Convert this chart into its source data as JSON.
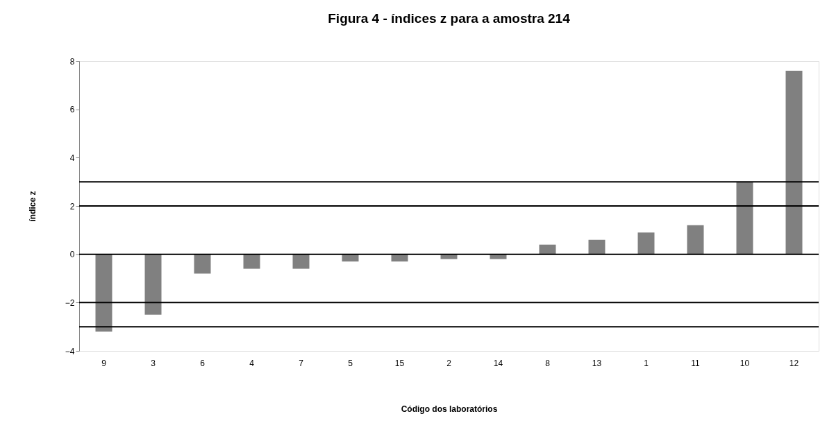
{
  "chart_data": {
    "type": "bar",
    "title": "Figura 4 - índices z para a amostra 214",
    "xlabel": "Código dos laboratórios",
    "ylabel": "índice z",
    "categories": [
      "9",
      "3",
      "6",
      "4",
      "7",
      "5",
      "15",
      "2",
      "14",
      "8",
      "13",
      "1",
      "11",
      "10",
      "12"
    ],
    "values": [
      -3.2,
      -2.5,
      -0.8,
      -0.6,
      -0.6,
      -0.3,
      -0.3,
      -0.2,
      -0.2,
      0.4,
      0.6,
      0.9,
      1.2,
      3.0,
      7.6
    ],
    "color": "#808080",
    "ylim": [
      -4,
      8
    ],
    "yticks": [
      -4,
      -2,
      0,
      2,
      4,
      6,
      8
    ],
    "grid": false,
    "ref_lines": [
      {
        "axis": "y",
        "value": 3,
        "color": "#000000"
      },
      {
        "axis": "y",
        "value": 2,
        "color": "#000000"
      },
      {
        "axis": "y",
        "value": 0,
        "color": "#000000"
      },
      {
        "axis": "y",
        "value": -2,
        "color": "#000000"
      },
      {
        "axis": "y",
        "value": -3,
        "color": "#000000"
      }
    ]
  }
}
